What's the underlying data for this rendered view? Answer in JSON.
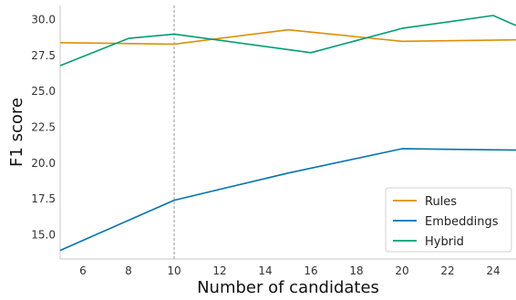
{
  "chart_data": {
    "type": "line",
    "title": "",
    "xlabel": "Number of candidates",
    "ylabel": "F1 score",
    "xlim": [
      5,
      25
    ],
    "ylim": [
      13.3,
      31.0
    ],
    "xticks": [
      6,
      8,
      10,
      12,
      14,
      16,
      18,
      20,
      22,
      24
    ],
    "yticks": [
      15.0,
      17.5,
      20.0,
      22.5,
      25.0,
      27.5,
      30.0
    ],
    "xtick_labels": [
      "6",
      "8",
      "10",
      "12",
      "14",
      "16",
      "18",
      "20",
      "22",
      "24"
    ],
    "ytick_labels": [
      "15.0",
      "17.5",
      "20.0",
      "22.5",
      "25.0",
      "27.5",
      "30.0"
    ],
    "grid": false,
    "reference_line": {
      "axis": "x",
      "value": 10,
      "style": "dashed",
      "color": "#7f7f7f"
    },
    "legend": {
      "position": "lower-right"
    },
    "series": [
      {
        "name": "Rules",
        "color": "#de8f05",
        "x": [
          5,
          10,
          15,
          20,
          25
        ],
        "y": [
          28.4,
          28.3,
          29.3,
          28.5,
          28.6
        ]
      },
      {
        "name": "Embeddings",
        "color": "#0173b2",
        "x": [
          5,
          10,
          15,
          20,
          25
        ],
        "y": [
          13.9,
          17.4,
          19.3,
          21.0,
          20.9
        ]
      },
      {
        "name": "Hybrid",
        "color": "#029e73",
        "x": [
          5,
          8,
          10,
          16,
          20,
          24,
          25
        ],
        "y": [
          26.8,
          28.7,
          29.0,
          27.7,
          29.4,
          30.3,
          29.6
        ]
      }
    ]
  }
}
